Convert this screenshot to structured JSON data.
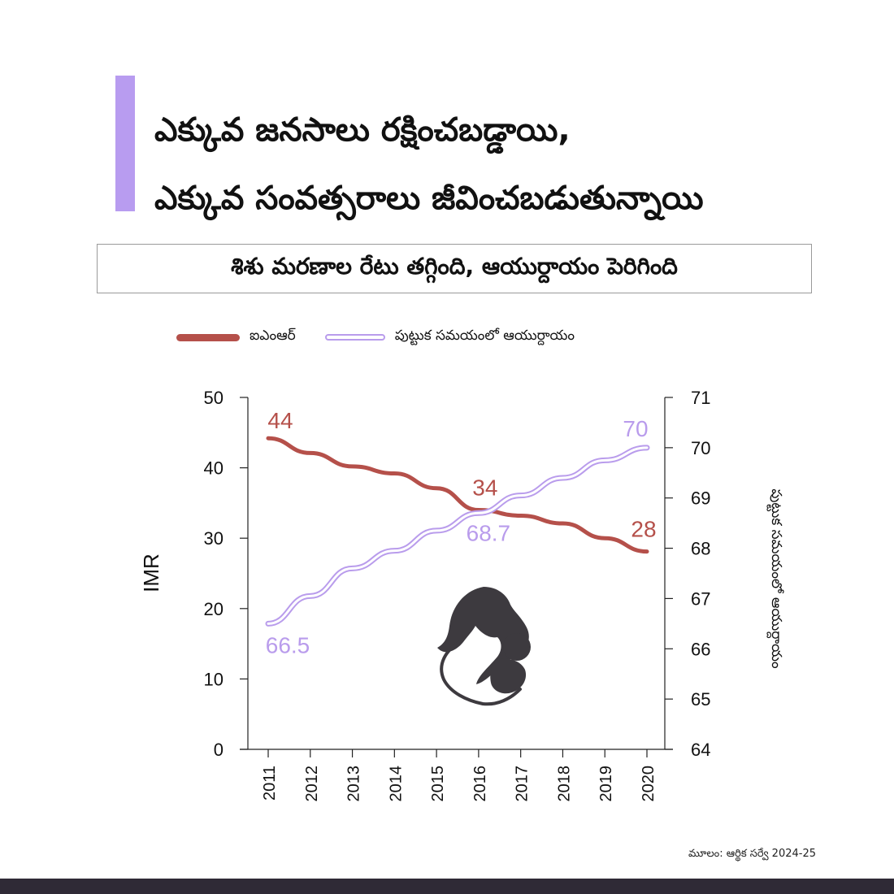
{
  "header": {
    "title_line1": "ఎక్కువ జనసాలు రక్షించబడ్డాయి,",
    "title_line2": "ఎక్కువ సంవత్సరాలు జీవించబడుతున్నాయి",
    "subtitle": "శిశు మరణాల రేటు తగ్గింది, ఆయుర్దాయం పెరిగింది",
    "accent_color": "#b89cf0"
  },
  "legend": {
    "imr_label": "ఐఎంఆర్",
    "le_label": "పుట్టుక సమయంలో ఆయుర్దాయం"
  },
  "source": "మూలం: ఆర్థిక సర్వే 2024-25",
  "chart_data": {
    "type": "line",
    "x": [
      "2011",
      "2012",
      "2013",
      "2014",
      "2015",
      "2016",
      "2017",
      "2018",
      "2019",
      "2020"
    ],
    "series": [
      {
        "name": "ఐఎంఆర్",
        "axis": "left",
        "color": "#b5504a",
        "values": [
          44.2,
          42.1,
          40.2,
          39.2,
          37.1,
          34.0,
          33.2,
          32.1,
          30.0,
          28.1
        ],
        "labels": [
          {
            "index": 0,
            "text": "44"
          },
          {
            "index": 5,
            "text": "34"
          },
          {
            "index": 9,
            "text": "28"
          }
        ]
      },
      {
        "name": "పుట్టుక సమయంలో ఆయుర్దాయం",
        "axis": "right",
        "color": "#b99cec",
        "values": [
          66.5,
          67.05,
          67.6,
          67.95,
          68.35,
          68.7,
          69.05,
          69.4,
          69.75,
          70.0
        ],
        "labels": [
          {
            "index": 0,
            "text": "66.5"
          },
          {
            "index": 5,
            "text": "68.7"
          },
          {
            "index": 9,
            "text": "70"
          }
        ]
      }
    ],
    "ylabel": "IMR",
    "y2label": "పుట్టుక సమయంలో ఆయుర్దాయం",
    "ylim": [
      0,
      50
    ],
    "y2lim": [
      64,
      71
    ],
    "yticks": [
      "0",
      "10",
      "20",
      "30",
      "40",
      "50"
    ],
    "y2ticks": [
      "64",
      "65",
      "66",
      "67",
      "68",
      "69",
      "70",
      "71"
    ],
    "grid": false,
    "legend_position": "top-left"
  }
}
